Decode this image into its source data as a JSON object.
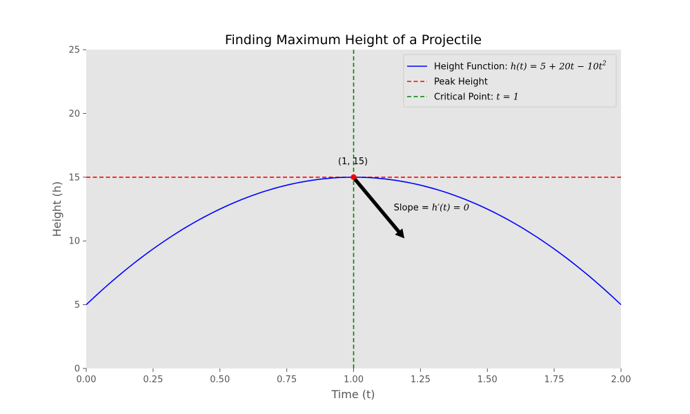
{
  "chart_data": {
    "type": "line",
    "title": "Finding Maximum Height of a Projectile",
    "xlabel": "Time (t)",
    "ylabel": "Height (h)",
    "xlim": [
      0,
      2
    ],
    "ylim": [
      0,
      25
    ],
    "xticks": [
      0,
      0.25,
      0.5,
      0.75,
      1.0,
      1.25,
      1.5,
      1.75,
      2.0
    ],
    "xtick_labels": [
      "0.00",
      "0.25",
      "0.50",
      "0.75",
      "1.00",
      "1.25",
      "1.50",
      "1.75",
      "2.00"
    ],
    "yticks": [
      0,
      5,
      10,
      15,
      20,
      25
    ],
    "ytick_labels": [
      "0",
      "5",
      "10",
      "15",
      "20",
      "25"
    ],
    "grid": false,
    "background_color": "#e5e5e5",
    "function": {
      "a": -10,
      "b": 20,
      "c": 5,
      "t_min": 0,
      "t_max": 2,
      "samples": 101
    },
    "series": [
      {
        "name": "Height Function: h(t) = 5 + 20t − 10t²",
        "color": "#0000ff",
        "style": "solid"
      },
      {
        "name": "Peak Height",
        "color": "#ff0000",
        "style": "dashed",
        "y": 15
      },
      {
        "name": "Critical Point: t = 1",
        "color": "#008000",
        "style": "dashed",
        "x": 1
      }
    ],
    "legend": {
      "position": "top-right",
      "entries": [
        {
          "prefix": "Height Function: ",
          "math": "h(t) = 5 + 20t − 10t",
          "sup": "2",
          "color": "#0000ff",
          "style": "solid"
        },
        {
          "prefix": "Peak Height",
          "math": "",
          "sup": "",
          "color": "#ff0000",
          "style": "dashed"
        },
        {
          "prefix": "Critical Point: ",
          "math": "t = 1",
          "sup": "",
          "color": "#008000",
          "style": "dashed"
        }
      ]
    },
    "peak_point": {
      "x": 1,
      "y": 15,
      "label": "(1, 15)",
      "color": "#ff0000"
    },
    "arrow_annotation": {
      "text_prefix": "Slope = ",
      "text_math": "h′(t) = 0",
      "from": {
        "x": 1.0,
        "y": 15
      },
      "to": {
        "x": 1.19,
        "y": 10.2
      },
      "text_at": {
        "x": 1.15,
        "y": 12.5
      }
    }
  }
}
